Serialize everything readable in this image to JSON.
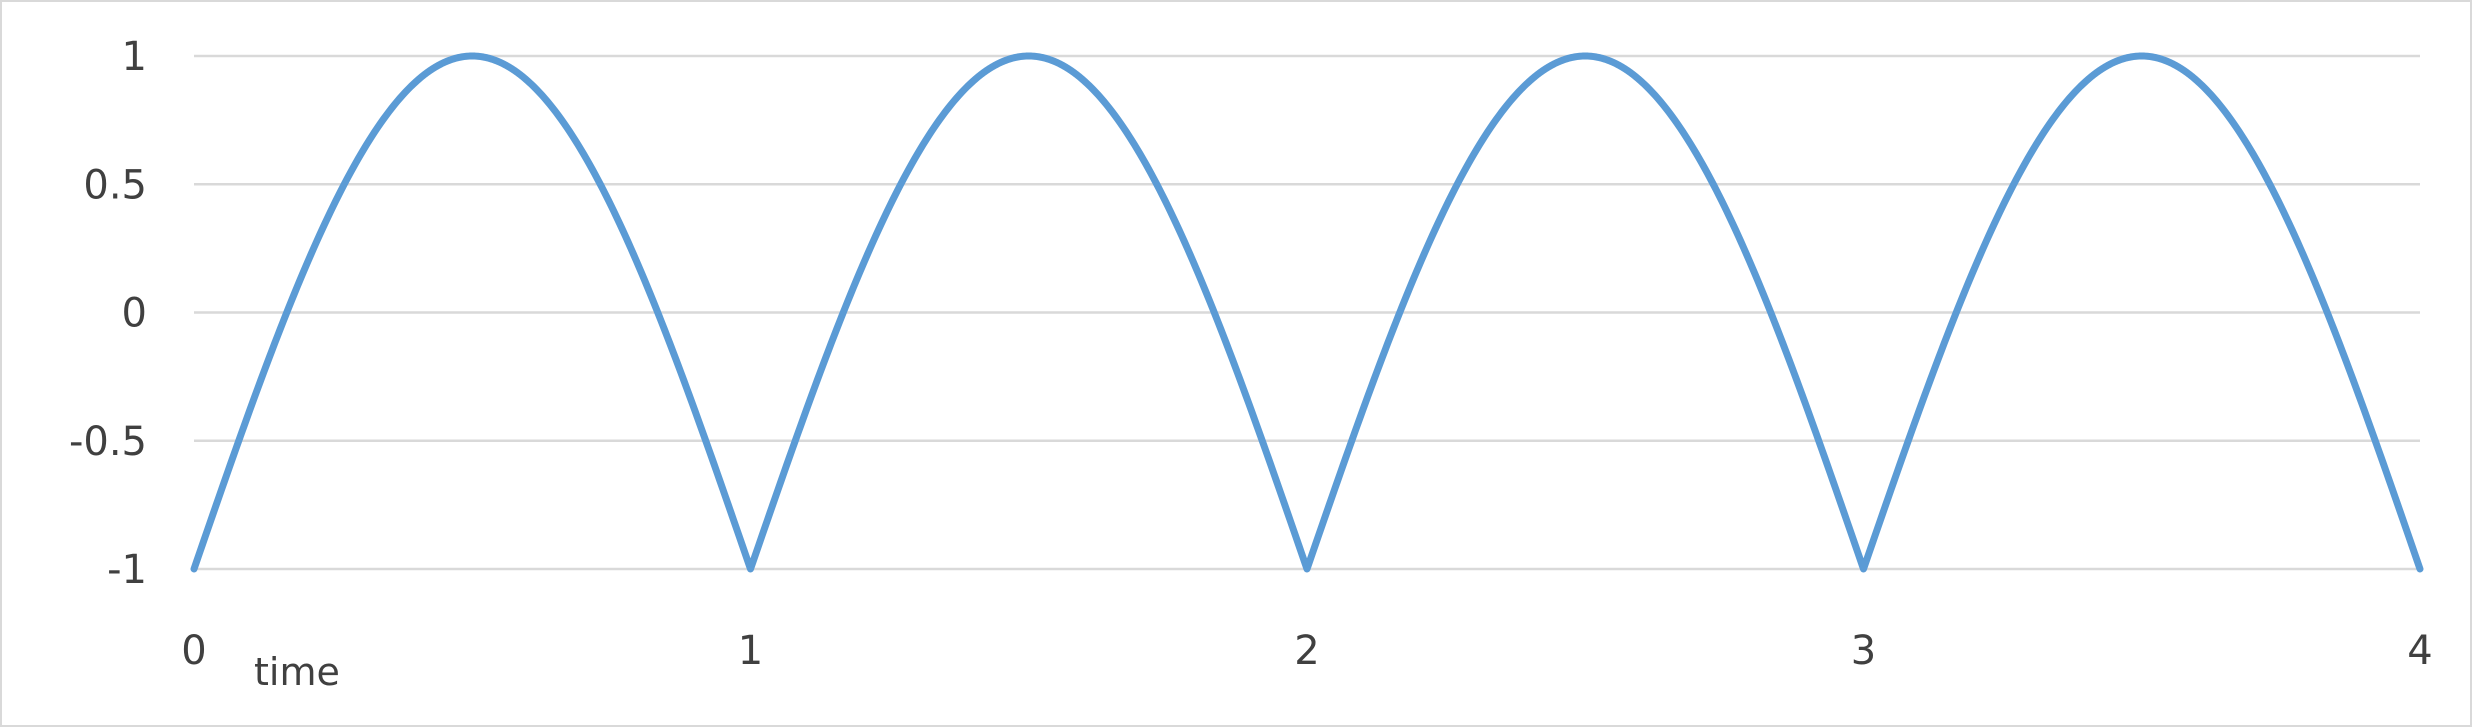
{
  "chart_data": {
    "type": "line",
    "title": "",
    "xlabel": "time",
    "ylabel": "",
    "xlim": [
      0,
      4
    ],
    "ylim": [
      -1,
      1
    ],
    "x_ticks": [
      "0",
      "1",
      "2",
      "3",
      "4"
    ],
    "y_ticks": [
      "1",
      "0.5",
      "0",
      "-0.5",
      "-1"
    ],
    "grid": "horizontal",
    "legend": "none",
    "series": [
      {
        "color": "#5b9bd5",
        "function": "2*|sin(pi*t)| - 1",
        "x": [
          0,
          0.125,
          0.25,
          0.375,
          0.5,
          0.625,
          0.75,
          0.875,
          1,
          1.125,
          1.25,
          1.375,
          1.5,
          1.625,
          1.75,
          1.875,
          2,
          2.125,
          2.25,
          2.375,
          2.5,
          2.625,
          2.75,
          2.875,
          3,
          3.125,
          3.25,
          3.375,
          3.5,
          3.625,
          3.75,
          3.875,
          4
        ],
        "values": [
          -1,
          -0.23,
          0.41,
          0.85,
          1,
          0.85,
          0.41,
          -0.23,
          -1,
          -0.23,
          0.41,
          0.85,
          1,
          0.85,
          0.41,
          -0.23,
          -1,
          -0.23,
          0.41,
          0.85,
          1,
          0.85,
          0.41,
          -0.23,
          -1,
          -0.23,
          0.41,
          0.85,
          1,
          0.85,
          0.41,
          -0.23,
          -1
        ]
      }
    ]
  }
}
